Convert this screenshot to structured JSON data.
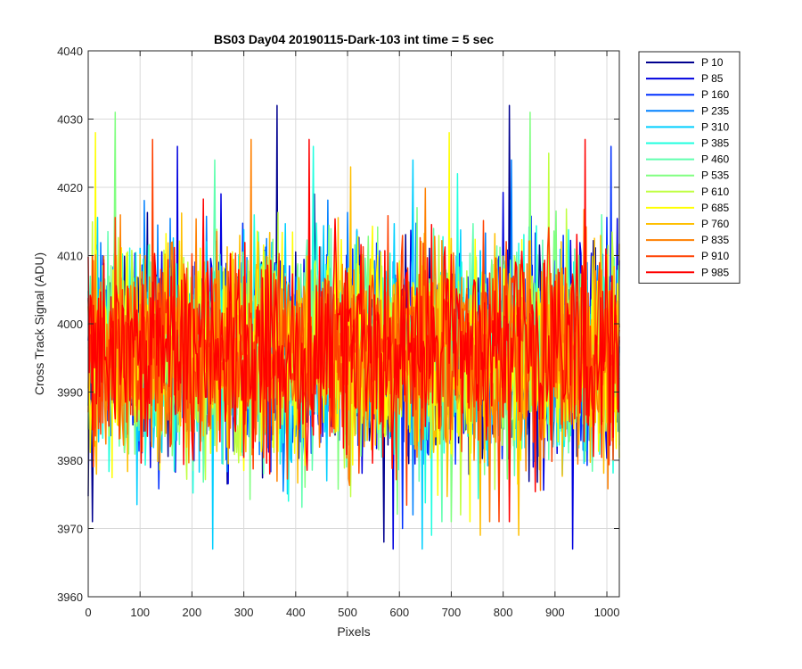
{
  "chart_data": {
    "type": "line",
    "title": "BS03 Day04 20190115-Dark-103 int time = 5 sec",
    "xlabel": "Pixels",
    "ylabel": "Cross Track Signal (ADU)",
    "xlim": [
      0,
      1024
    ],
    "ylim": [
      3960,
      4040
    ],
    "xticks": [
      0,
      100,
      200,
      300,
      400,
      500,
      600,
      700,
      800,
      900,
      1000
    ],
    "yticks": [
      3960,
      3970,
      3980,
      3990,
      4000,
      4010,
      4020,
      4030,
      4040
    ],
    "grid": true,
    "legend_position": "outside-top-right",
    "noise_center": 3996,
    "noise_band_typical": [
      3980,
      4012
    ],
    "series": [
      {
        "name": "P 10",
        "color": "#00008F",
        "min": 3968,
        "max": 4032
      },
      {
        "name": "P 85",
        "color": "#0000DF",
        "min": 3967,
        "max": 4026
      },
      {
        "name": "P 160",
        "color": "#0030FF",
        "min": 3970,
        "max": 4026
      },
      {
        "name": "P 235",
        "color": "#0080FF",
        "min": 3972,
        "max": 4024
      },
      {
        "name": "P 310",
        "color": "#00CFFF",
        "min": 3967,
        "max": 4024
      },
      {
        "name": "P 385",
        "color": "#20FFDF",
        "min": 3969,
        "max": 4026
      },
      {
        "name": "P 460",
        "color": "#60FFAF",
        "min": 3971,
        "max": 4024
      },
      {
        "name": "P 535",
        "color": "#80FF80",
        "min": 3971,
        "max": 4031
      },
      {
        "name": "P 610",
        "color": "#BFFF40",
        "min": 3972,
        "max": 4025
      },
      {
        "name": "P 685",
        "color": "#FFFF00",
        "min": 3971,
        "max": 4028
      },
      {
        "name": "P 760",
        "color": "#FFBF00",
        "min": 3969,
        "max": 4023
      },
      {
        "name": "P 835",
        "color": "#FF8000",
        "min": 3971,
        "max": 4027
      },
      {
        "name": "P 910",
        "color": "#FF4000",
        "min": 3971,
        "max": 4027
      },
      {
        "name": "P 985",
        "color": "#FF0000",
        "min": 3971,
        "max": 4027
      }
    ],
    "notable_spikes": [
      {
        "series": "P 10",
        "x": 811,
        "y": 4032
      },
      {
        "series": "P 535",
        "x": 852,
        "y": 4031
      },
      {
        "series": "P 685",
        "x": 14,
        "y": 4028
      },
      {
        "series": "P 985",
        "x": 425,
        "y": 4027
      },
      {
        "series": "P 310",
        "x": 240,
        "y": 3967
      },
      {
        "series": "P 85",
        "x": 933,
        "y": 3967
      },
      {
        "series": "P 760",
        "x": 830,
        "y": 3969
      }
    ]
  }
}
